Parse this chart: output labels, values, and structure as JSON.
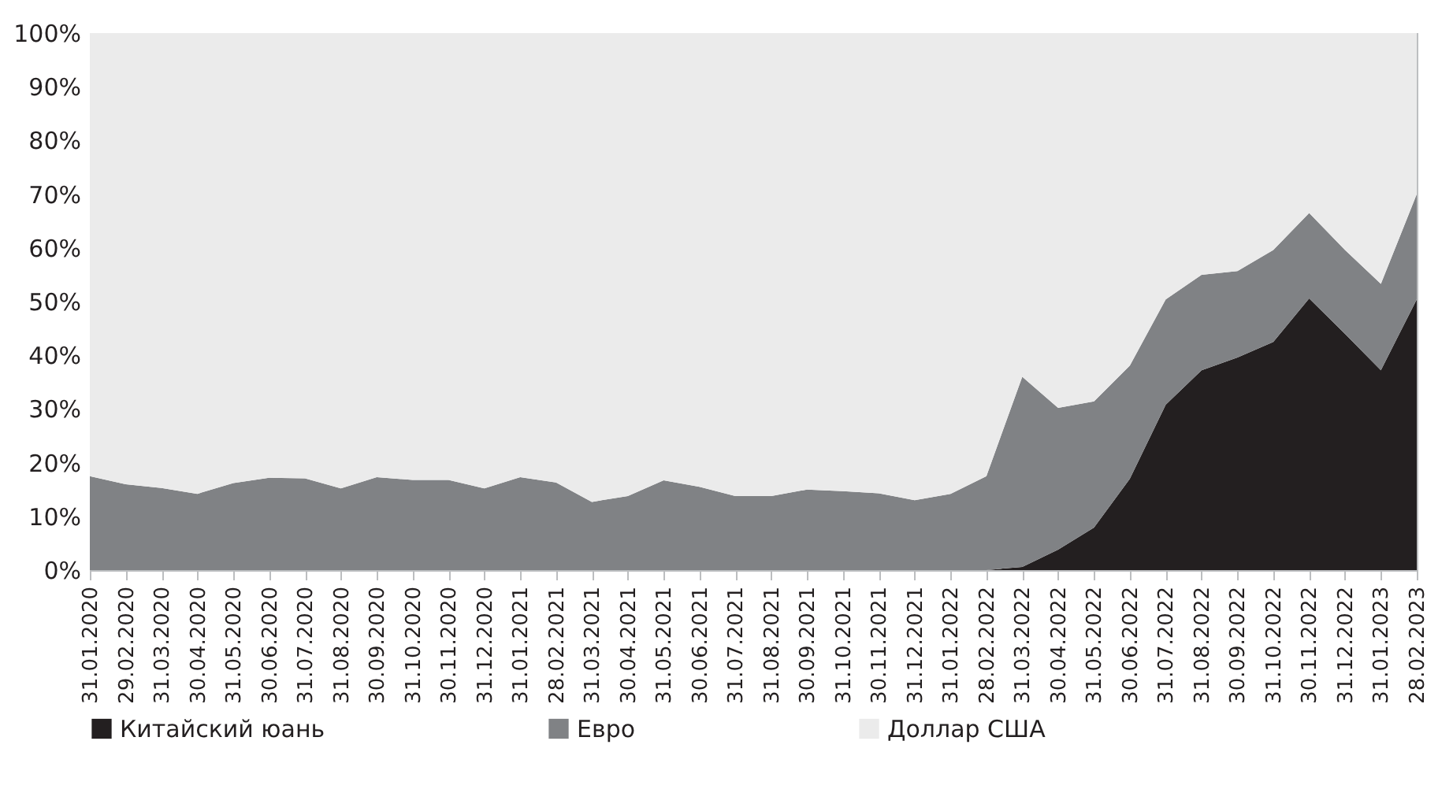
{
  "chart_data": {
    "type": "area",
    "stacked": true,
    "legend": "bottom",
    "categories": [
      "31.01.2020",
      "29.02.2020",
      "31.03.2020",
      "30.04.2020",
      "31.05.2020",
      "30.06.2020",
      "31.07.2020",
      "31.08.2020",
      "30.09.2020",
      "31.10.2020",
      "30.11.2020",
      "31.12.2020",
      "31.01.2021",
      "28.02.2021",
      "31.03.2021",
      "30.04.2021",
      "31.05.2021",
      "30.06.2021",
      "31.07.2021",
      "31.08.2021",
      "30.09.2021",
      "31.10.2021",
      "30.11.2021",
      "31.12.2021",
      "31.01.2022",
      "28.02.2022",
      "31.03.2022",
      "30.04.2022",
      "31.05.2022",
      "30.06.2022",
      "31.07.2022",
      "31.08.2022",
      "30.09.2022",
      "31.10.2022",
      "30.11.2022",
      "31.12.2022",
      "31.01.2023",
      "28.02.2023"
    ],
    "series": [
      {
        "name": "Китайский юань",
        "color": "#231f20",
        "values": [
          0,
          0,
          0,
          0,
          0,
          0,
          0,
          0,
          0,
          0,
          0,
          0,
          0,
          0,
          0,
          0,
          0,
          0,
          0,
          0,
          0,
          0,
          0,
          0,
          0,
          0,
          0.6,
          3.8,
          7.9,
          17,
          30.8,
          37.2,
          39.6,
          42.5,
          50.6,
          44,
          37.2,
          50.4
        ]
      },
      {
        "name": "Евро",
        "color": "#808285",
        "values": [
          17.5,
          16,
          15.3,
          14.2,
          16.2,
          17.2,
          17.1,
          15.2,
          17.3,
          16.8,
          16.8,
          15.2,
          17.3,
          16.3,
          12.7,
          13.8,
          16.7,
          15.5,
          13.8,
          13.8,
          15,
          14.7,
          14.3,
          13,
          14.2,
          17.5,
          35.4,
          26.4,
          23.5,
          21.1,
          19.6,
          17.8,
          16.1,
          17.1,
          15.9,
          15.6,
          16.1,
          19.6
        ]
      },
      {
        "name": "Доллар США",
        "color": "#ebebeb",
        "values": [
          82.5,
          84,
          84.7,
          85.8,
          83.8,
          82.8,
          82.9,
          84.8,
          82.7,
          83.2,
          83.2,
          84.8,
          82.7,
          83.7,
          87.3,
          86.2,
          83.3,
          84.5,
          86.2,
          86.2,
          85,
          85.3,
          85.7,
          87,
          85.8,
          82.5,
          64,
          69.8,
          68.6,
          61.9,
          49.6,
          45,
          44.3,
          40.4,
          33.5,
          40.4,
          46.7,
          30
        ]
      }
    ],
    "ylim": [
      0,
      100
    ],
    "yticks": [
      {
        "value": 0,
        "label": "0%"
      },
      {
        "value": 10,
        "label": "10%"
      },
      {
        "value": 20,
        "label": "20%"
      },
      {
        "value": 30,
        "label": "30%"
      },
      {
        "value": 40,
        "label": "40%"
      },
      {
        "value": 50,
        "label": "50%"
      },
      {
        "value": 60,
        "label": "60%"
      },
      {
        "value": 70,
        "label": "70%"
      },
      {
        "value": 80,
        "label": "80%"
      },
      {
        "value": 90,
        "label": "90%"
      },
      {
        "value": 100,
        "label": "100%"
      }
    ]
  }
}
